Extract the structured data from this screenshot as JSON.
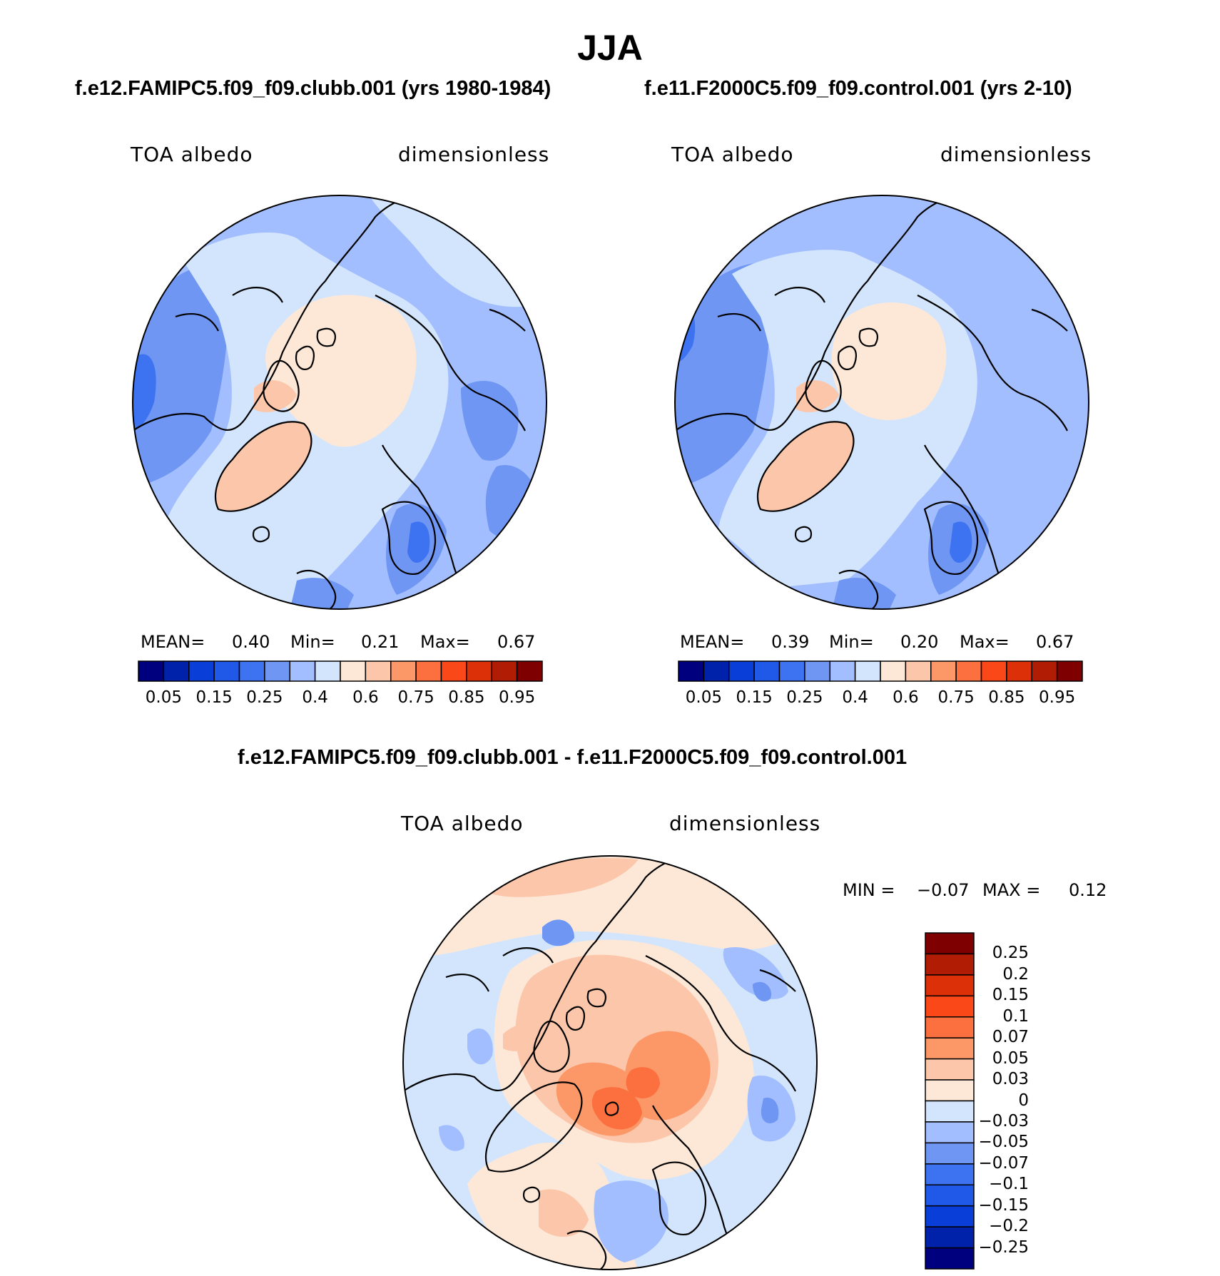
{
  "main_title": "JJA",
  "panels": [
    {
      "title": "f.e12.FAMIPC5.f09_f09.clubb.001 (yrs 1980-1984)",
      "variable": "TOA albedo",
      "units": "dimensionless",
      "stats": {
        "mean_label": "MEAN=",
        "mean": "0.40",
        "min_label": "Min=",
        "min": "0.21",
        "max_label": "Max=",
        "max": "0.67"
      }
    },
    {
      "title": "f.e11.F2000C5.f09_f09.control.001 (yrs 2-10)",
      "variable": "TOA albedo",
      "units": "dimensionless",
      "stats": {
        "mean_label": "MEAN=",
        "mean": "0.39",
        "min_label": "Min=",
        "min": "0.20",
        "max_label": "Max=",
        "max": "0.67"
      }
    }
  ],
  "diff_panel": {
    "title": "f.e12.FAMIPC5.f09_f09.clubb.001 - f.e11.F2000C5.f09_f09.control.001",
    "variable": "TOA albedo",
    "units": "dimensionless",
    "stats": {
      "min_label": "MIN =",
      "min": "−0.07",
      "max_label": "MAX =",
      "max": "0.12"
    }
  },
  "colorbar_abs": {
    "colors": [
      "#00007f",
      "#0022aa",
      "#0a3ed8",
      "#2058e8",
      "#3d72f0",
      "#6e96f2",
      "#a2beff",
      "#d2e5fc",
      "#fde8d8",
      "#fcc6aa",
      "#fc9868",
      "#fc7040",
      "#fa4818",
      "#dc3008",
      "#b01c04",
      "#7e0000"
    ],
    "tick_labels": [
      "0.05",
      "0.15",
      "0.25",
      "0.4",
      "0.6",
      "0.75",
      "0.85",
      "0.95"
    ]
  },
  "colorbar_diff": {
    "colors": [
      "#7e0000",
      "#b01c04",
      "#dc3008",
      "#fa4818",
      "#fc7040",
      "#fc9868",
      "#fcc6aa",
      "#fde8d8",
      "#d2e5fc",
      "#a2beff",
      "#6e96f2",
      "#3d72f0",
      "#2058e8",
      "#0a3ed8",
      "#0022aa",
      "#00007f"
    ],
    "tick_labels": [
      "0.25",
      "0.2",
      "0.15",
      "0.1",
      "0.07",
      "0.05",
      "0.03",
      "0",
      "−0.03",
      "−0.05",
      "−0.07",
      "−0.1",
      "−0.15",
      "−0.2",
      "−0.25"
    ]
  }
}
